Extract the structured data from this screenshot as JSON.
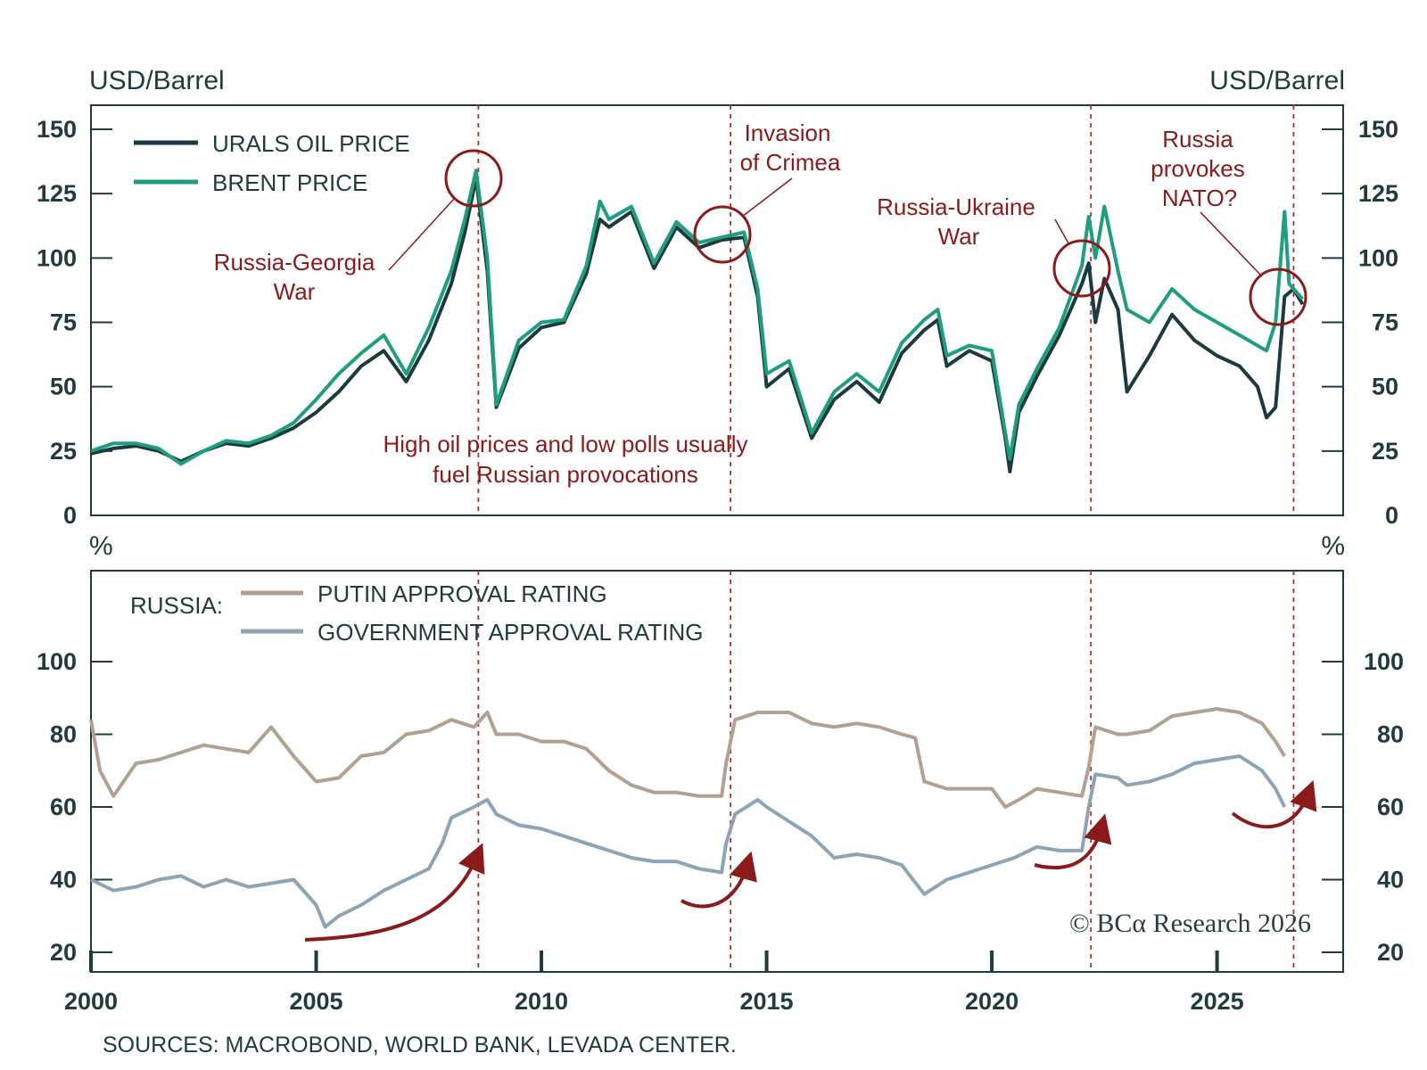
{
  "chart_data": [
    {
      "type": "line",
      "panel": "oil",
      "ylabel_left": "USD/Barrel",
      "ylabel_right": "USD/Barrel",
      "ylim": [
        0,
        150
      ],
      "yticks": [
        0,
        25,
        50,
        75,
        100,
        125,
        150
      ],
      "xlim": [
        2000,
        2027.8
      ],
      "series": [
        {
          "name": "URALS OIL PRICE",
          "color": "#1b3a40",
          "points": [
            [
              2000.0,
              24
            ],
            [
              2000.5,
              26
            ],
            [
              2001.0,
              27
            ],
            [
              2001.5,
              25
            ],
            [
              2002.0,
              21
            ],
            [
              2002.5,
              25
            ],
            [
              2003.0,
              28
            ],
            [
              2003.5,
              27
            ],
            [
              2004.0,
              30
            ],
            [
              2004.5,
              34
            ],
            [
              2005.0,
              40
            ],
            [
              2005.5,
              48
            ],
            [
              2006.0,
              58
            ],
            [
              2006.5,
              64
            ],
            [
              2007.0,
              52
            ],
            [
              2007.5,
              68
            ],
            [
              2008.0,
              90
            ],
            [
              2008.3,
              110
            ],
            [
              2008.55,
              131
            ],
            [
              2008.8,
              95
            ],
            [
              2009.0,
              42
            ],
            [
              2009.5,
              65
            ],
            [
              2010.0,
              73
            ],
            [
              2010.5,
              75
            ],
            [
              2011.0,
              94
            ],
            [
              2011.3,
              115
            ],
            [
              2011.5,
              112
            ],
            [
              2012.0,
              118
            ],
            [
              2012.5,
              96
            ],
            [
              2013.0,
              112
            ],
            [
              2013.5,
              104
            ],
            [
              2014.0,
              107
            ],
            [
              2014.5,
              108
            ],
            [
              2014.8,
              85
            ],
            [
              2015.0,
              50
            ],
            [
              2015.5,
              57
            ],
            [
              2016.0,
              30
            ],
            [
              2016.5,
              45
            ],
            [
              2017.0,
              52
            ],
            [
              2017.5,
              44
            ],
            [
              2018.0,
              63
            ],
            [
              2018.5,
              72
            ],
            [
              2018.8,
              76
            ],
            [
              2019.0,
              58
            ],
            [
              2019.5,
              64
            ],
            [
              2020.0,
              60
            ],
            [
              2020.3,
              30
            ],
            [
              2020.4,
              17
            ],
            [
              2020.6,
              40
            ],
            [
              2021.0,
              54
            ],
            [
              2021.5,
              70
            ],
            [
              2022.0,
              90
            ],
            [
              2022.15,
              98
            ],
            [
              2022.3,
              75
            ],
            [
              2022.5,
              92
            ],
            [
              2022.8,
              80
            ],
            [
              2023.0,
              48
            ],
            [
              2023.5,
              62
            ],
            [
              2024.0,
              78
            ],
            [
              2024.5,
              68
            ],
            [
              2025.0,
              62
            ],
            [
              2025.5,
              58
            ],
            [
              2025.9,
              50
            ],
            [
              2026.1,
              38
            ],
            [
              2026.3,
              42
            ],
            [
              2026.5,
              85
            ],
            [
              2026.7,
              88
            ],
            [
              2026.9,
              82
            ]
          ]
        },
        {
          "name": "BRENT PRICE",
          "color": "#1f9e7e",
          "points": [
            [
              2000.0,
              25
            ],
            [
              2000.5,
              28
            ],
            [
              2001.0,
              28
            ],
            [
              2001.5,
              26
            ],
            [
              2002.0,
              20
            ],
            [
              2002.5,
              25
            ],
            [
              2003.0,
              29
            ],
            [
              2003.5,
              28
            ],
            [
              2004.0,
              31
            ],
            [
              2004.5,
              36
            ],
            [
              2005.0,
              45
            ],
            [
              2005.5,
              55
            ],
            [
              2006.0,
              63
            ],
            [
              2006.5,
              70
            ],
            [
              2007.0,
              55
            ],
            [
              2007.5,
              73
            ],
            [
              2008.0,
              95
            ],
            [
              2008.3,
              115
            ],
            [
              2008.55,
              134
            ],
            [
              2008.8,
              100
            ],
            [
              2009.0,
              43
            ],
            [
              2009.5,
              68
            ],
            [
              2010.0,
              75
            ],
            [
              2010.5,
              76
            ],
            [
              2011.0,
              97
            ],
            [
              2011.3,
              122
            ],
            [
              2011.5,
              115
            ],
            [
              2012.0,
              120
            ],
            [
              2012.5,
              98
            ],
            [
              2013.0,
              114
            ],
            [
              2013.5,
              106
            ],
            [
              2014.0,
              108
            ],
            [
              2014.5,
              110
            ],
            [
              2014.8,
              88
            ],
            [
              2015.0,
              55
            ],
            [
              2015.5,
              60
            ],
            [
              2016.0,
              32
            ],
            [
              2016.5,
              48
            ],
            [
              2017.0,
              55
            ],
            [
              2017.5,
              48
            ],
            [
              2018.0,
              67
            ],
            [
              2018.5,
              76
            ],
            [
              2018.8,
              80
            ],
            [
              2019.0,
              62
            ],
            [
              2019.5,
              66
            ],
            [
              2020.0,
              64
            ],
            [
              2020.3,
              32
            ],
            [
              2020.4,
              22
            ],
            [
              2020.6,
              43
            ],
            [
              2021.0,
              57
            ],
            [
              2021.5,
              73
            ],
            [
              2022.0,
              97
            ],
            [
              2022.15,
              116
            ],
            [
              2022.3,
              100
            ],
            [
              2022.5,
              120
            ],
            [
              2022.8,
              95
            ],
            [
              2023.0,
              80
            ],
            [
              2023.5,
              75
            ],
            [
              2024.0,
              88
            ],
            [
              2024.5,
              80
            ],
            [
              2025.0,
              75
            ],
            [
              2025.5,
              70
            ],
            [
              2025.9,
              66
            ],
            [
              2026.1,
              64
            ],
            [
              2026.3,
              75
            ],
            [
              2026.5,
              118
            ],
            [
              2026.6,
              90
            ],
            [
              2026.9,
              84
            ]
          ]
        }
      ],
      "legend": "top-left"
    },
    {
      "type": "line",
      "panel": "approval",
      "ylabel_left": "%",
      "ylabel_right": "%",
      "ylim": [
        15,
        130
      ],
      "yticks": [
        20,
        40,
        60,
        80,
        100
      ],
      "xlim": [
        2000,
        2027.8
      ],
      "xticks": [
        2000,
        2005,
        2010,
        2015,
        2020,
        2025
      ],
      "legend_title": "RUSSIA:",
      "series": [
        {
          "name": "PUTIN APPROVAL RATING",
          "color": "#b2a190",
          "points": [
            [
              2000.0,
              84
            ],
            [
              2000.2,
              70
            ],
            [
              2000.5,
              63
            ],
            [
              2001.0,
              72
            ],
            [
              2001.5,
              73
            ],
            [
              2002.0,
              75
            ],
            [
              2002.5,
              77
            ],
            [
              2003.0,
              76
            ],
            [
              2003.5,
              75
            ],
            [
              2004.0,
              82
            ],
            [
              2004.5,
              74
            ],
            [
              2005.0,
              67
            ],
            [
              2005.5,
              68
            ],
            [
              2006.0,
              74
            ],
            [
              2006.5,
              75
            ],
            [
              2007.0,
              80
            ],
            [
              2007.5,
              81
            ],
            [
              2008.0,
              84
            ],
            [
              2008.5,
              82
            ],
            [
              2008.8,
              86
            ],
            [
              2009.0,
              80
            ],
            [
              2009.5,
              80
            ],
            [
              2010.0,
              78
            ],
            [
              2010.5,
              78
            ],
            [
              2011.0,
              76
            ],
            [
              2011.5,
              70
            ],
            [
              2012.0,
              66
            ],
            [
              2012.5,
              64
            ],
            [
              2013.0,
              64
            ],
            [
              2013.5,
              63
            ],
            [
              2014.0,
              63
            ],
            [
              2014.1,
              72
            ],
            [
              2014.3,
              84
            ],
            [
              2014.8,
              86
            ],
            [
              2015.0,
              86
            ],
            [
              2015.5,
              86
            ],
            [
              2016.0,
              83
            ],
            [
              2016.5,
              82
            ],
            [
              2017.0,
              83
            ],
            [
              2017.5,
              82
            ],
            [
              2018.0,
              80
            ],
            [
              2018.3,
              79
            ],
            [
              2018.5,
              67
            ],
            [
              2019.0,
              65
            ],
            [
              2019.5,
              65
            ],
            [
              2020.0,
              65
            ],
            [
              2020.3,
              60
            ],
            [
              2020.6,
              62
            ],
            [
              2021.0,
              65
            ],
            [
              2021.5,
              64
            ],
            [
              2022.0,
              63
            ],
            [
              2022.15,
              71
            ],
            [
              2022.3,
              82
            ],
            [
              2022.8,
              80
            ],
            [
              2023.0,
              80
            ],
            [
              2023.5,
              81
            ],
            [
              2024.0,
              85
            ],
            [
              2024.5,
              86
            ],
            [
              2025.0,
              87
            ],
            [
              2025.5,
              86
            ],
            [
              2026.0,
              83
            ],
            [
              2026.3,
              78
            ],
            [
              2026.5,
              74
            ]
          ]
        },
        {
          "name": "GOVERNMENT APPROVAL RATING",
          "color": "#8ea4b4",
          "points": [
            [
              2000.0,
              40
            ],
            [
              2000.5,
              37
            ],
            [
              2001.0,
              38
            ],
            [
              2001.5,
              40
            ],
            [
              2002.0,
              41
            ],
            [
              2002.5,
              38
            ],
            [
              2003.0,
              40
            ],
            [
              2003.5,
              38
            ],
            [
              2004.0,
              39
            ],
            [
              2004.5,
              40
            ],
            [
              2005.0,
              33
            ],
            [
              2005.2,
              27
            ],
            [
              2005.5,
              30
            ],
            [
              2006.0,
              33
            ],
            [
              2006.5,
              37
            ],
            [
              2007.0,
              40
            ],
            [
              2007.5,
              43
            ],
            [
              2007.8,
              50
            ],
            [
              2008.0,
              57
            ],
            [
              2008.5,
              60
            ],
            [
              2008.8,
              62
            ],
            [
              2009.0,
              58
            ],
            [
              2009.5,
              55
            ],
            [
              2010.0,
              54
            ],
            [
              2010.5,
              52
            ],
            [
              2011.0,
              50
            ],
            [
              2011.5,
              48
            ],
            [
              2012.0,
              46
            ],
            [
              2012.5,
              45
            ],
            [
              2013.0,
              45
            ],
            [
              2013.5,
              43
            ],
            [
              2014.0,
              42
            ],
            [
              2014.1,
              50
            ],
            [
              2014.3,
              58
            ],
            [
              2014.8,
              62
            ],
            [
              2015.0,
              60
            ],
            [
              2015.5,
              56
            ],
            [
              2016.0,
              52
            ],
            [
              2016.5,
              46
            ],
            [
              2017.0,
              47
            ],
            [
              2017.5,
              46
            ],
            [
              2018.0,
              44
            ],
            [
              2018.5,
              36
            ],
            [
              2019.0,
              40
            ],
            [
              2019.5,
              42
            ],
            [
              2020.0,
              44
            ],
            [
              2020.5,
              46
            ],
            [
              2021.0,
              49
            ],
            [
              2021.5,
              48
            ],
            [
              2022.0,
              48
            ],
            [
              2022.15,
              60
            ],
            [
              2022.3,
              69
            ],
            [
              2022.8,
              68
            ],
            [
              2023.0,
              66
            ],
            [
              2023.5,
              67
            ],
            [
              2024.0,
              69
            ],
            [
              2024.5,
              72
            ],
            [
              2025.0,
              73
            ],
            [
              2025.5,
              74
            ],
            [
              2026.0,
              70
            ],
            [
              2026.3,
              65
            ],
            [
              2026.5,
              60
            ]
          ]
        }
      ],
      "legend": "top-left"
    }
  ],
  "event_lines": [
    2008.6,
    2014.2,
    2022.2,
    2026.7
  ],
  "annotations": {
    "georgia": [
      "Russia-Georgia",
      "War"
    ],
    "crimea": [
      "Invasion",
      "of Crimea"
    ],
    "ukraine": [
      "Russia-Ukraine",
      "War"
    ],
    "nato": [
      "Russia",
      "provokes",
      "NATO?"
    ],
    "center_note": [
      "High oil prices and low polls usually",
      "fuel Russian provocations"
    ]
  },
  "copyright": "© BCα Research 2026",
  "sources": "SOURCES: MACROBOND, WORLD BANK, LEVADA CENTER.",
  "colors": {
    "annotation": "#8b1a1a",
    "axis": "#1f3b3f",
    "urals": "#1b3a40",
    "brent": "#1f9e7e",
    "putin": "#b2a190",
    "government": "#8ea4b4"
  }
}
